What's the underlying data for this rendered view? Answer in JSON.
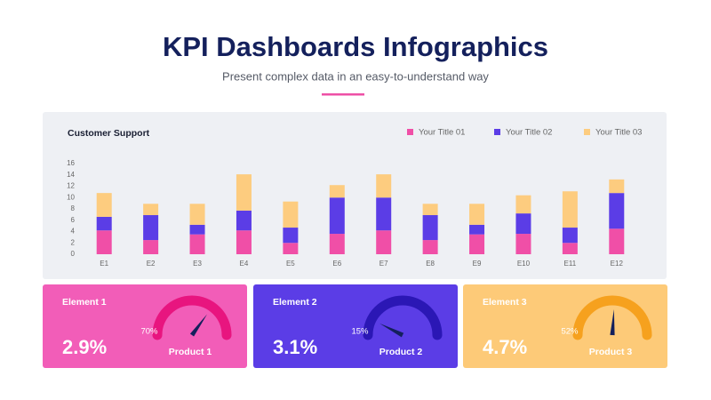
{
  "header": {
    "title": "KPI Dashboards Infographics",
    "subtitle": "Present complex data in an easy-to-understand way"
  },
  "chart_data": {
    "type": "stacked_bar",
    "title": "Customer Support",
    "categories": [
      "E1",
      "E2",
      "E3",
      "E4",
      "E5",
      "E6",
      "E7",
      "E8",
      "E9",
      "E10",
      "E11",
      "E12"
    ],
    "series": [
      {
        "name": "Your Title 01",
        "color": "#f04fa7",
        "values": [
          4.2,
          2.5,
          3.5,
          4.2,
          2.0,
          3.6,
          4.2,
          2.5,
          3.5,
          3.6,
          2.0,
          4.5
        ]
      },
      {
        "name": "Your Title 02",
        "color": "#5b3de6",
        "values": [
          2.4,
          4.4,
          1.7,
          3.5,
          2.7,
          6.4,
          5.8,
          4.4,
          1.7,
          3.6,
          2.7,
          6.3
        ]
      },
      {
        "name": "Your Title 03",
        "color": "#fdcc7f",
        "values": [
          4.2,
          2.0,
          3.7,
          6.4,
          4.6,
          2.2,
          4.1,
          2.0,
          3.7,
          3.2,
          6.4,
          2.4
        ]
      }
    ],
    "ylim": [
      0,
      16
    ],
    "yticks": [
      0,
      2,
      4,
      6,
      8,
      10,
      12,
      14,
      16
    ],
    "legend": "top-right",
    "grid": false
  },
  "cards": [
    {
      "title": "Element 1",
      "kpi": "2.9%",
      "gauge": {
        "value": 70,
        "label": "70%"
      },
      "product": "Product 1",
      "background": "#f25db8",
      "color": "#e8157f"
    },
    {
      "title": "Element 2",
      "kpi": "3.1%",
      "gauge": {
        "value": 15,
        "label": "15%"
      },
      "product": "Product 2",
      "background": "#5b3de6",
      "color": "#2b17b5"
    },
    {
      "title": "Element 3",
      "kpi": "4.7%",
      "gauge": {
        "value": 52,
        "label": "52%"
      },
      "product": "Product 3",
      "background": "#fdca78",
      "color": "#f6a11e"
    }
  ]
}
